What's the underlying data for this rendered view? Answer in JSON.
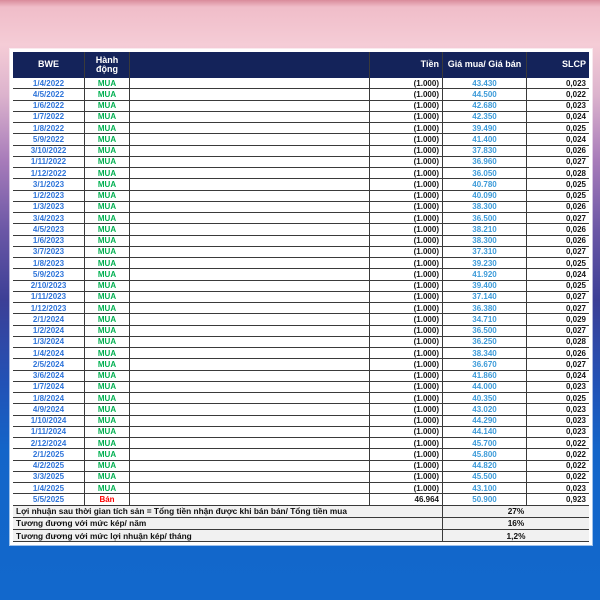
{
  "table": {
    "columns": [
      "BWE",
      "Hành động",
      "",
      "Tiền",
      "Giá mua/ Giá bán",
      "SLCP"
    ],
    "colors": {
      "header_bg": "#14235A",
      "date": "#2E74D9",
      "buy": "#00B050",
      "sell": "#FF0000",
      "price": "#3D9BD9"
    },
    "rows": [
      {
        "date": "1/4/2022",
        "action": "MUA",
        "money": "(1.000)",
        "price": "43.430",
        "slcp": "0,023"
      },
      {
        "date": "4/5/2022",
        "action": "MUA",
        "money": "(1.000)",
        "price": "44.500",
        "slcp": "0,022"
      },
      {
        "date": "1/6/2022",
        "action": "MUA",
        "money": "(1.000)",
        "price": "42.680",
        "slcp": "0,023"
      },
      {
        "date": "1/7/2022",
        "action": "MUA",
        "money": "(1.000)",
        "price": "42.350",
        "slcp": "0,024"
      },
      {
        "date": "1/8/2022",
        "action": "MUA",
        "money": "(1.000)",
        "price": "39.490",
        "slcp": "0,025"
      },
      {
        "date": "5/9/2022",
        "action": "MUA",
        "money": "(1.000)",
        "price": "41.400",
        "slcp": "0,024"
      },
      {
        "date": "3/10/2022",
        "action": "MUA",
        "money": "(1.000)",
        "price": "37.830",
        "slcp": "0,026"
      },
      {
        "date": "1/11/2022",
        "action": "MUA",
        "money": "(1.000)",
        "price": "36.960",
        "slcp": "0,027"
      },
      {
        "date": "1/12/2022",
        "action": "MUA",
        "money": "(1.000)",
        "price": "36.050",
        "slcp": "0,028"
      },
      {
        "date": "3/1/2023",
        "action": "MUA",
        "money": "(1.000)",
        "price": "40.780",
        "slcp": "0,025"
      },
      {
        "date": "1/2/2023",
        "action": "MUA",
        "money": "(1.000)",
        "price": "40.090",
        "slcp": "0,025"
      },
      {
        "date": "1/3/2023",
        "action": "MUA",
        "money": "(1.000)",
        "price": "38.300",
        "slcp": "0,026"
      },
      {
        "date": "3/4/2023",
        "action": "MUA",
        "money": "(1.000)",
        "price": "36.500",
        "slcp": "0,027"
      },
      {
        "date": "4/5/2023",
        "action": "MUA",
        "money": "(1.000)",
        "price": "38.210",
        "slcp": "0,026"
      },
      {
        "date": "1/6/2023",
        "action": "MUA",
        "money": "(1.000)",
        "price": "38.300",
        "slcp": "0,026"
      },
      {
        "date": "3/7/2023",
        "action": "MUA",
        "money": "(1.000)",
        "price": "37.310",
        "slcp": "0,027"
      },
      {
        "date": "1/8/2023",
        "action": "MUA",
        "money": "(1.000)",
        "price": "39.230",
        "slcp": "0,025"
      },
      {
        "date": "5/9/2023",
        "action": "MUA",
        "money": "(1.000)",
        "price": "41.920",
        "slcp": "0,024"
      },
      {
        "date": "2/10/2023",
        "action": "MUA",
        "money": "(1.000)",
        "price": "39.400",
        "slcp": "0,025"
      },
      {
        "date": "1/11/2023",
        "action": "MUA",
        "money": "(1.000)",
        "price": "37.140",
        "slcp": "0,027"
      },
      {
        "date": "1/12/2023",
        "action": "MUA",
        "money": "(1.000)",
        "price": "36.380",
        "slcp": "0,027"
      },
      {
        "date": "2/1/2024",
        "action": "MUA",
        "money": "(1.000)",
        "price": "34.710",
        "slcp": "0,029"
      },
      {
        "date": "1/2/2024",
        "action": "MUA",
        "money": "(1.000)",
        "price": "36.500",
        "slcp": "0,027"
      },
      {
        "date": "1/3/2024",
        "action": "MUA",
        "money": "(1.000)",
        "price": "36.250",
        "slcp": "0,028"
      },
      {
        "date": "1/4/2024",
        "action": "MUA",
        "money": "(1.000)",
        "price": "38.340",
        "slcp": "0,026"
      },
      {
        "date": "2/5/2024",
        "action": "MUA",
        "money": "(1.000)",
        "price": "36.670",
        "slcp": "0,027"
      },
      {
        "date": "3/6/2024",
        "action": "MUA",
        "money": "(1.000)",
        "price": "41.860",
        "slcp": "0,024"
      },
      {
        "date": "1/7/2024",
        "action": "MUA",
        "money": "(1.000)",
        "price": "44.000",
        "slcp": "0,023"
      },
      {
        "date": "1/8/2024",
        "action": "MUA",
        "money": "(1.000)",
        "price": "40.350",
        "slcp": "0,025"
      },
      {
        "date": "4/9/2024",
        "action": "MUA",
        "money": "(1.000)",
        "price": "43.020",
        "slcp": "0,023"
      },
      {
        "date": "1/10/2024",
        "action": "MUA",
        "money": "(1.000)",
        "price": "44.290",
        "slcp": "0,023"
      },
      {
        "date": "1/11/2024",
        "action": "MUA",
        "money": "(1.000)",
        "price": "44.140",
        "slcp": "0,023"
      },
      {
        "date": "2/12/2024",
        "action": "MUA",
        "money": "(1.000)",
        "price": "45.700",
        "slcp": "0,022"
      },
      {
        "date": "2/1/2025",
        "action": "MUA",
        "money": "(1.000)",
        "price": "45.800",
        "slcp": "0,022"
      },
      {
        "date": "4/2/2025",
        "action": "MUA",
        "money": "(1.000)",
        "price": "44.820",
        "slcp": "0,022"
      },
      {
        "date": "3/3/2025",
        "action": "MUA",
        "money": "(1.000)",
        "price": "45.500",
        "slcp": "0,022"
      },
      {
        "date": "1/4/2025",
        "action": "MUA",
        "money": "(1.000)",
        "price": "43.100",
        "slcp": "0,023"
      },
      {
        "date": "5/5/2025",
        "action": "Bán",
        "money": "46.964",
        "price": "50.900",
        "slcp": "0,923"
      }
    ],
    "summary": [
      {
        "label": "Lợi nhuận sau thời gian tích sản = Tổng tiền nhận được khi bán bán/ Tổng tiền mua",
        "value": "27%"
      },
      {
        "label": "Tương đương với mức kép/ năm",
        "value": "16%"
      },
      {
        "label": "Tương đương với mức lợi nhuận kép/ tháng",
        "value": "1,2%"
      }
    ]
  }
}
